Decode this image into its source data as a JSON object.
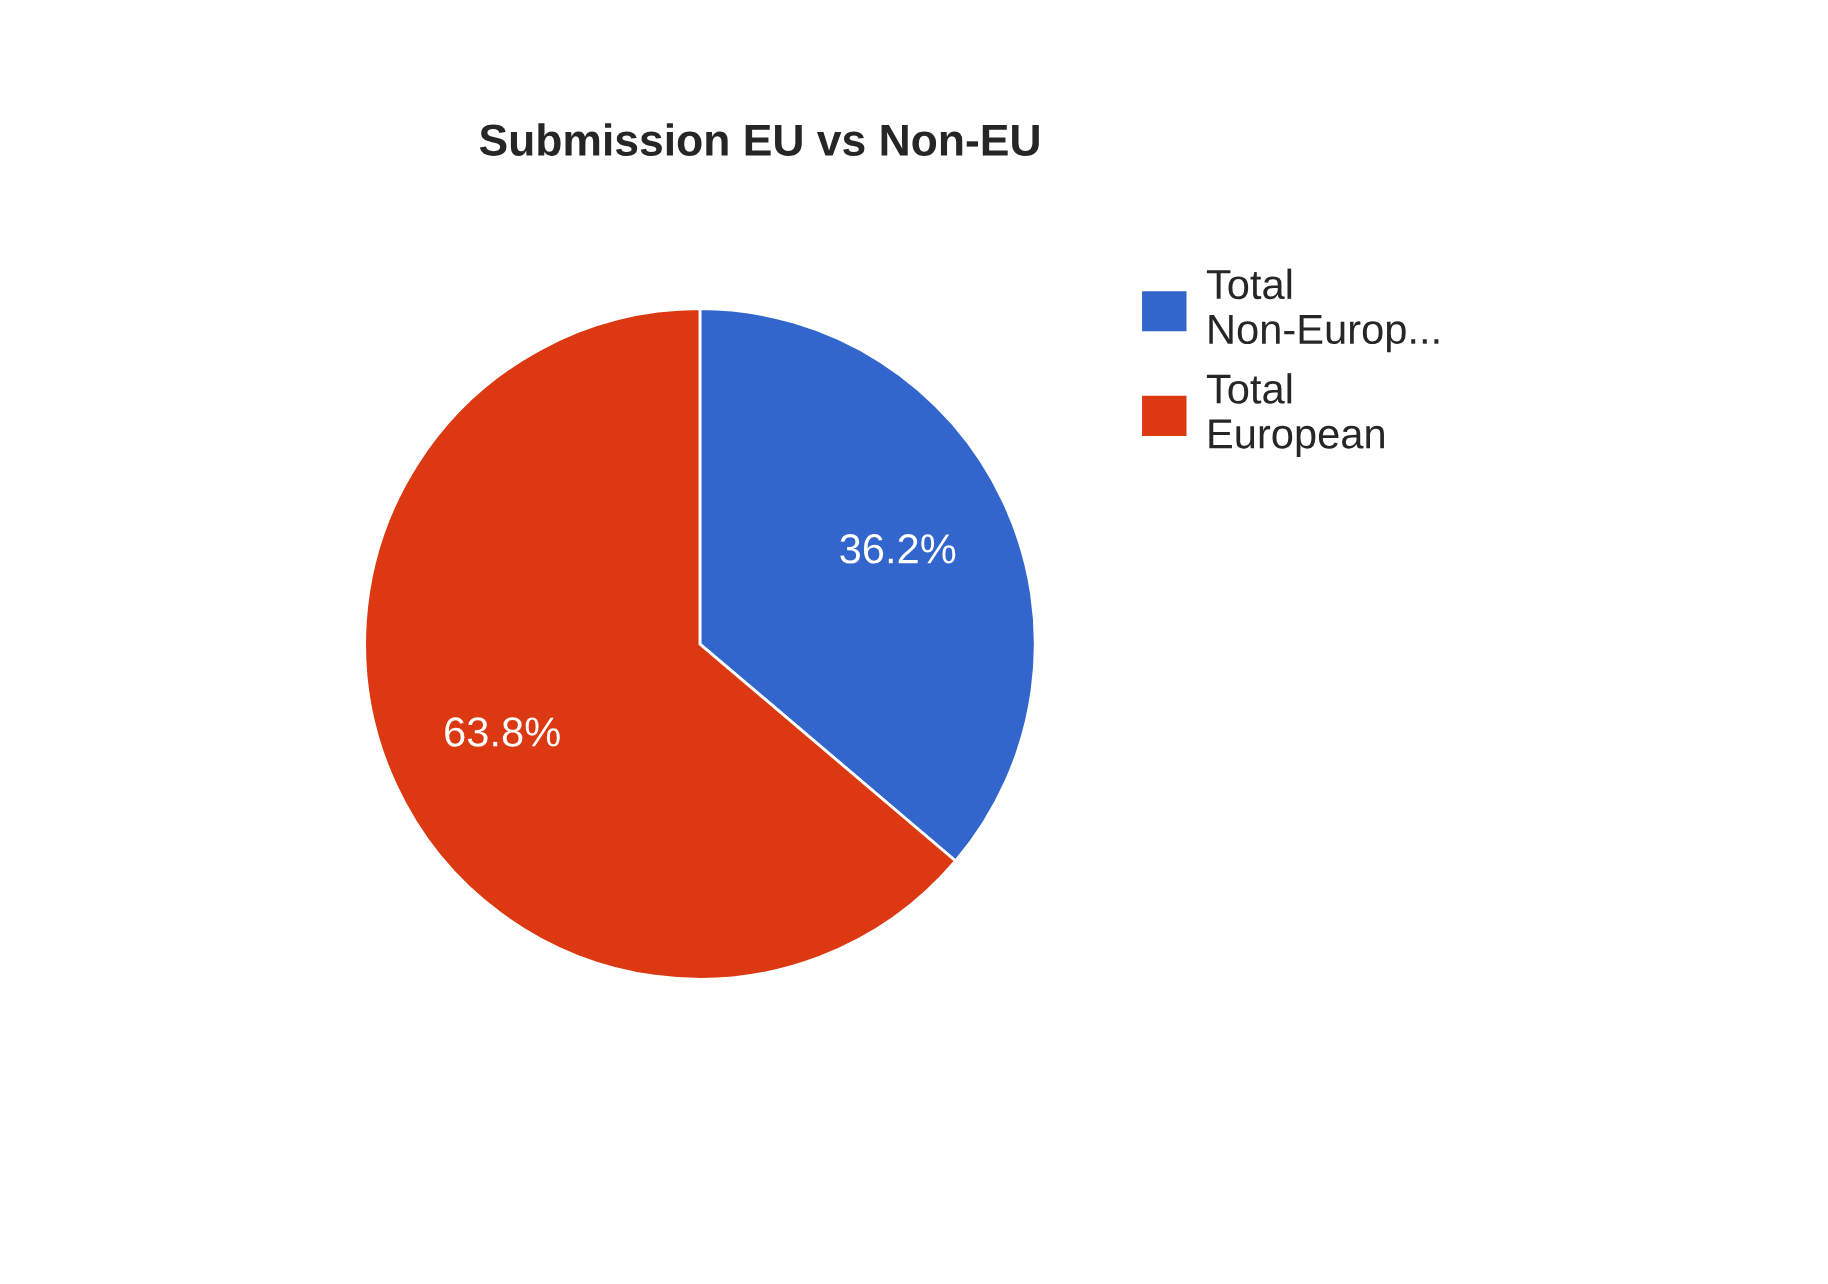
{
  "chart_data": {
    "type": "pie",
    "title": "Submission EU vs Non-EU",
    "categories": [
      "Total Non-Europ...",
      "Total European"
    ],
    "values": [
      36.2,
      63.8
    ],
    "colors": [
      "#3366cc",
      "#dc3912"
    ],
    "value_labels": [
      "36.2%",
      "63.8%"
    ],
    "legend": "right"
  }
}
